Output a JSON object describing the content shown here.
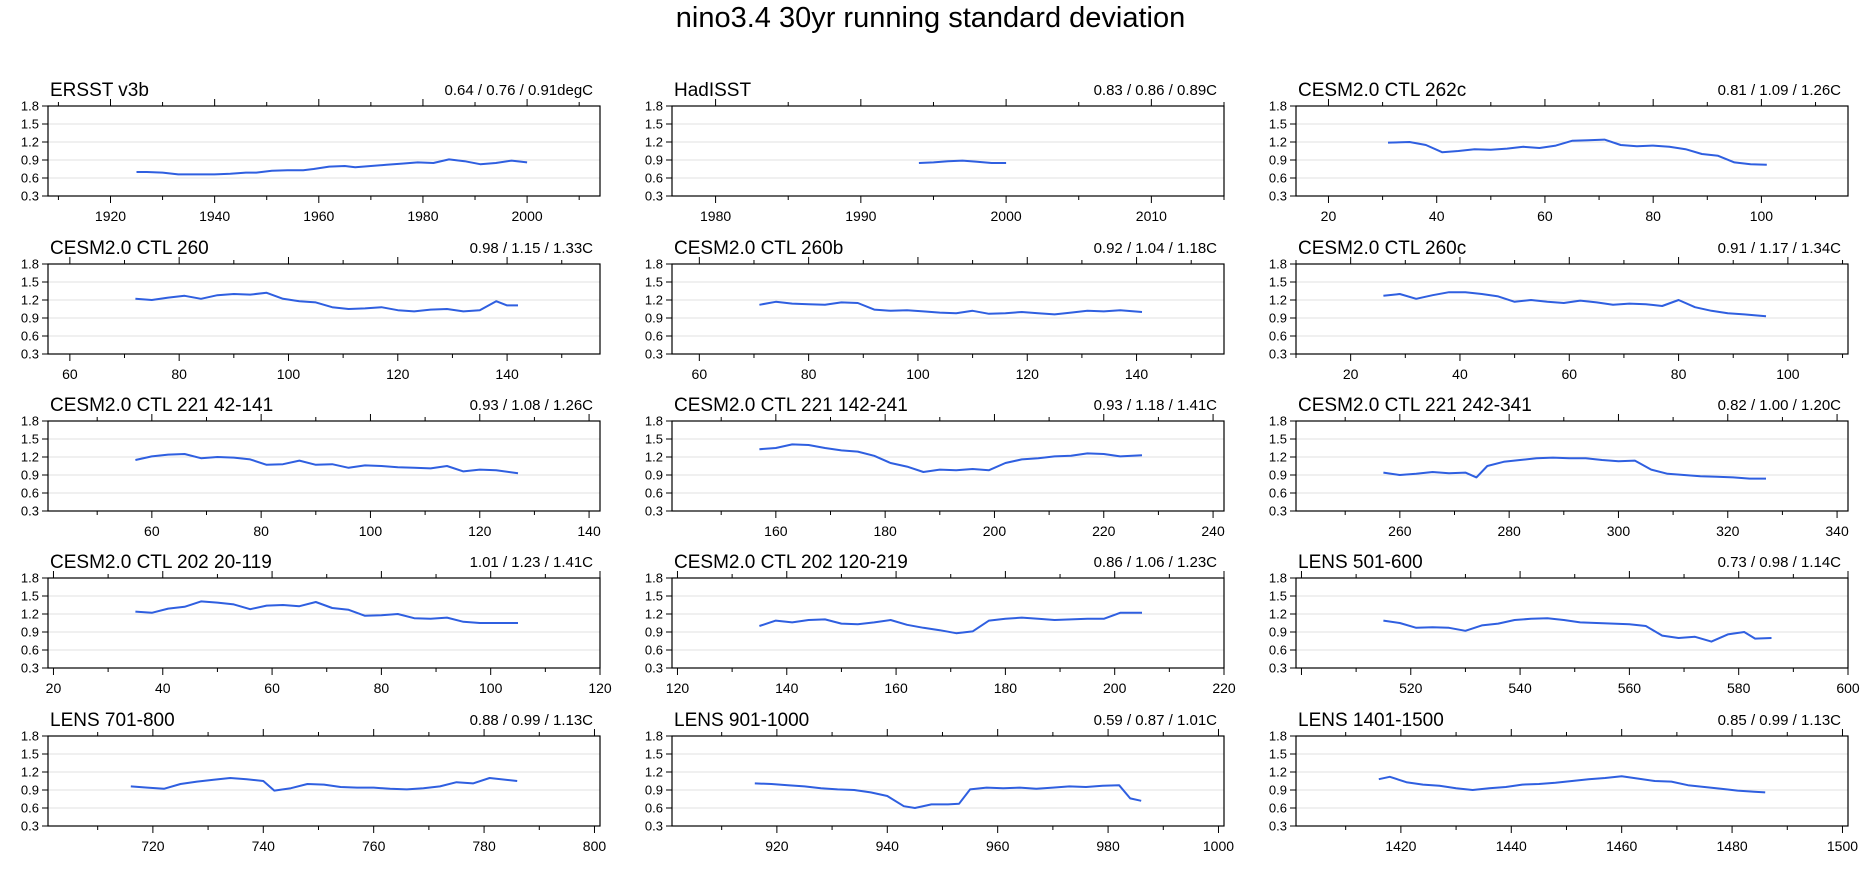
{
  "title": "nino3.4 30yr running standard deviation",
  "colors": {
    "series": "#2f5fe0",
    "grid": "#d9d9d9",
    "axis": "#000000"
  },
  "chart_data": [
    {
      "type": "line",
      "title": "ERSST v3b",
      "stats": "0.64 / 0.76 / 0.91degC",
      "xlim": [
        1908,
        2014
      ],
      "xticks": [
        1920,
        1940,
        1960,
        1980,
        2000
      ],
      "ylim": [
        0.3,
        1.8
      ],
      "yticks": [
        "0.3",
        "0.6",
        "0.9",
        "1.2",
        "1.5",
        "1.8"
      ],
      "x": [
        1925,
        1927,
        1930,
        1933,
        1936,
        1940,
        1943,
        1946,
        1948,
        1951,
        1954,
        1957,
        1959,
        1962,
        1965,
        1967,
        1970,
        1973,
        1976,
        1979,
        1982,
        1985,
        1988,
        1991,
        1994,
        1997,
        2000
      ],
      "y": [
        0.7,
        0.7,
        0.69,
        0.66,
        0.66,
        0.66,
        0.67,
        0.69,
        0.69,
        0.72,
        0.73,
        0.73,
        0.75,
        0.79,
        0.8,
        0.78,
        0.8,
        0.82,
        0.84,
        0.86,
        0.85,
        0.91,
        0.88,
        0.83,
        0.85,
        0.89,
        0.86
      ]
    },
    {
      "type": "line",
      "title": "HadISST",
      "stats": "0.83 / 0.86 / 0.89C",
      "xlim": [
        1977,
        2015
      ],
      "xticks": [
        1980,
        1990,
        2000,
        2010
      ],
      "ylim": [
        0.3,
        1.8
      ],
      "yticks": [
        "0.3",
        "0.6",
        "0.9",
        "1.2",
        "1.5",
        "1.8"
      ],
      "x": [
        1994,
        1995,
        1996,
        1997,
        1998,
        1999,
        2000
      ],
      "y": [
        0.85,
        0.86,
        0.88,
        0.89,
        0.87,
        0.85,
        0.85
      ]
    },
    {
      "type": "line",
      "title": "CESM2.0 CTL 262c",
      "stats": "0.81 / 1.09 / 1.26C",
      "xlim": [
        14,
        116
      ],
      "xticks": [
        20,
        40,
        60,
        80,
        100
      ],
      "ylim": [
        0.3,
        1.8
      ],
      "yticks": [
        "0.3",
        "0.6",
        "0.9",
        "1.2",
        "1.5",
        "1.8"
      ],
      "x": [
        31,
        35,
        38,
        41,
        44,
        47,
        50,
        53,
        56,
        59,
        62,
        65,
        68,
        71,
        74,
        77,
        80,
        83,
        86,
        89,
        92,
        95,
        98,
        101
      ],
      "y": [
        1.19,
        1.2,
        1.15,
        1.03,
        1.05,
        1.08,
        1.07,
        1.09,
        1.12,
        1.1,
        1.14,
        1.22,
        1.23,
        1.24,
        1.15,
        1.13,
        1.14,
        1.12,
        1.08,
        1.0,
        0.97,
        0.86,
        0.83,
        0.82
      ]
    },
    {
      "type": "line",
      "title": "CESM2.0 CTL 260",
      "stats": "0.98 / 1.15 / 1.33C",
      "xlim": [
        56,
        157
      ],
      "xticks": [
        60,
        80,
        100,
        120,
        140
      ],
      "ylim": [
        0.3,
        1.8
      ],
      "yticks": [
        "0.3",
        "0.6",
        "0.9",
        "1.2",
        "1.5",
        "1.8"
      ],
      "x": [
        72,
        75,
        78,
        81,
        84,
        87,
        90,
        93,
        96,
        99,
        102,
        105,
        108,
        111,
        114,
        117,
        120,
        123,
        126,
        129,
        132,
        135,
        138,
        140,
        142
      ],
      "y": [
        1.22,
        1.2,
        1.24,
        1.27,
        1.22,
        1.28,
        1.3,
        1.29,
        1.32,
        1.22,
        1.18,
        1.16,
        1.08,
        1.05,
        1.06,
        1.08,
        1.03,
        1.01,
        1.04,
        1.05,
        1.01,
        1.03,
        1.18,
        1.11,
        1.11
      ]
    },
    {
      "type": "line",
      "title": "CESM2.0 CTL 260b",
      "stats": "0.92 / 1.04 / 1.18C",
      "xlim": [
        55,
        156
      ],
      "xticks": [
        60,
        80,
        100,
        120,
        140
      ],
      "ylim": [
        0.3,
        1.8
      ],
      "yticks": [
        "0.3",
        "0.6",
        "0.9",
        "1.2",
        "1.5",
        "1.8"
      ],
      "x": [
        71,
        74,
        77,
        80,
        83,
        86,
        89,
        92,
        95,
        98,
        101,
        104,
        107,
        110,
        113,
        116,
        119,
        122,
        125,
        128,
        131,
        134,
        137,
        141
      ],
      "y": [
        1.12,
        1.17,
        1.14,
        1.13,
        1.12,
        1.16,
        1.15,
        1.04,
        1.02,
        1.03,
        1.01,
        0.99,
        0.98,
        1.02,
        0.97,
        0.98,
        1.0,
        0.98,
        0.96,
        0.99,
        1.02,
        1.01,
        1.03,
        1.0
      ]
    },
    {
      "type": "line",
      "title": "CESM2.0 CTL 260c",
      "stats": "0.91 / 1.17 / 1.34C",
      "xlim": [
        10,
        111
      ],
      "xticks": [
        20,
        40,
        60,
        80,
        100
      ],
      "ylim": [
        0.3,
        1.8
      ],
      "yticks": [
        "0.3",
        "0.6",
        "0.9",
        "1.2",
        "1.5",
        "1.8"
      ],
      "x": [
        26,
        29,
        32,
        35,
        38,
        41,
        44,
        47,
        50,
        53,
        56,
        59,
        62,
        65,
        68,
        71,
        74,
        77,
        80,
        83,
        86,
        89,
        92,
        96
      ],
      "y": [
        1.27,
        1.3,
        1.22,
        1.28,
        1.33,
        1.33,
        1.3,
        1.26,
        1.17,
        1.2,
        1.17,
        1.15,
        1.19,
        1.16,
        1.12,
        1.14,
        1.13,
        1.1,
        1.2,
        1.08,
        1.02,
        0.98,
        0.96,
        0.93
      ]
    },
    {
      "type": "line",
      "title": "CESM2.0 CTL 221 42-141",
      "stats": "0.93 / 1.08 / 1.26C",
      "xlim": [
        41,
        142
      ],
      "xticks": [
        60,
        80,
        100,
        120,
        140
      ],
      "ylim": [
        0.3,
        1.8
      ],
      "yticks": [
        "0.3",
        "0.6",
        "0.9",
        "1.2",
        "1.5",
        "1.8"
      ],
      "x": [
        57,
        60,
        63,
        66,
        69,
        72,
        75,
        78,
        81,
        84,
        87,
        90,
        93,
        96,
        99,
        102,
        105,
        108,
        111,
        114,
        117,
        120,
        123,
        127
      ],
      "y": [
        1.15,
        1.21,
        1.24,
        1.25,
        1.18,
        1.2,
        1.19,
        1.16,
        1.07,
        1.08,
        1.14,
        1.07,
        1.08,
        1.02,
        1.06,
        1.05,
        1.03,
        1.02,
        1.01,
        1.05,
        0.96,
        0.99,
        0.98,
        0.93
      ]
    },
    {
      "type": "line",
      "title": "CESM2.0 CTL 221 142-241",
      "stats": "0.93 / 1.18 / 1.41C",
      "xlim": [
        141,
        242
      ],
      "xticks": [
        160,
        180,
        200,
        220,
        240
      ],
      "ylim": [
        0.3,
        1.8
      ],
      "yticks": [
        "0.3",
        "0.6",
        "0.9",
        "1.2",
        "1.5",
        "1.8"
      ],
      "x": [
        157,
        160,
        163,
        166,
        169,
        172,
        175,
        178,
        181,
        184,
        187,
        190,
        193,
        196,
        199,
        202,
        205,
        208,
        211,
        214,
        217,
        220,
        223,
        227
      ],
      "y": [
        1.33,
        1.35,
        1.41,
        1.4,
        1.35,
        1.31,
        1.29,
        1.22,
        1.1,
        1.04,
        0.95,
        0.99,
        0.98,
        1.0,
        0.98,
        1.1,
        1.16,
        1.18,
        1.21,
        1.22,
        1.26,
        1.25,
        1.21,
        1.23
      ]
    },
    {
      "type": "line",
      "title": "CESM2.0 CTL 221 242-341",
      "stats": "0.82 / 1.00 / 1.20C",
      "xlim": [
        241,
        342
      ],
      "xticks": [
        260,
        280,
        300,
        320,
        340
      ],
      "ylim": [
        0.3,
        1.8
      ],
      "yticks": [
        "0.3",
        "0.6",
        "0.9",
        "1.2",
        "1.5",
        "1.8"
      ],
      "x": [
        257,
        260,
        263,
        266,
        269,
        272,
        274,
        276,
        279,
        282,
        285,
        288,
        291,
        294,
        297,
        300,
        303,
        306,
        309,
        312,
        315,
        318,
        321,
        324,
        327
      ],
      "y": [
        0.94,
        0.9,
        0.92,
        0.95,
        0.93,
        0.94,
        0.86,
        1.05,
        1.12,
        1.15,
        1.18,
        1.19,
        1.18,
        1.18,
        1.15,
        1.13,
        1.14,
        0.99,
        0.92,
        0.9,
        0.88,
        0.87,
        0.86,
        0.84,
        0.84
      ]
    },
    {
      "type": "line",
      "title": "CESM2.0 CTL 202 20-119",
      "stats": "1.01 / 1.23 / 1.41C",
      "xlim": [
        19,
        120
      ],
      "xticks": [
        20,
        40,
        60,
        80,
        100,
        120
      ],
      "ylim": [
        0.3,
        1.8
      ],
      "yticks": [
        "0.3",
        "0.6",
        "0.9",
        "1.2",
        "1.5",
        "1.8"
      ],
      "x": [
        35,
        38,
        41,
        44,
        47,
        50,
        53,
        56,
        59,
        62,
        65,
        68,
        71,
        74,
        77,
        80,
        83,
        86,
        89,
        92,
        95,
        98,
        101,
        105
      ],
      "y": [
        1.24,
        1.22,
        1.29,
        1.32,
        1.41,
        1.39,
        1.36,
        1.28,
        1.34,
        1.35,
        1.33,
        1.4,
        1.3,
        1.27,
        1.17,
        1.18,
        1.2,
        1.13,
        1.12,
        1.14,
        1.07,
        1.05,
        1.05,
        1.05
      ]
    },
    {
      "type": "line",
      "title": "CESM2.0 CTL 202 120-219",
      "stats": "0.86 / 1.06 / 1.23C",
      "xlim": [
        119,
        220
      ],
      "xticks": [
        120,
        140,
        160,
        180,
        200,
        220
      ],
      "ylim": [
        0.3,
        1.8
      ],
      "yticks": [
        "0.3",
        "0.6",
        "0.9",
        "1.2",
        "1.5",
        "1.8"
      ],
      "x": [
        135,
        138,
        141,
        144,
        147,
        150,
        153,
        156,
        159,
        162,
        165,
        168,
        171,
        174,
        177,
        180,
        183,
        186,
        189,
        192,
        195,
        198,
        201,
        205
      ],
      "y": [
        1.0,
        1.09,
        1.06,
        1.1,
        1.11,
        1.04,
        1.03,
        1.06,
        1.1,
        1.02,
        0.97,
        0.93,
        0.88,
        0.91,
        1.09,
        1.12,
        1.14,
        1.12,
        1.1,
        1.11,
        1.12,
        1.12,
        1.22,
        1.22
      ]
    },
    {
      "type": "line",
      "title": "LENS 501-600",
      "stats": "0.73 / 0.98 / 1.14C",
      "xlim": [
        499,
        600
      ],
      "xticks": [
        520,
        540,
        560,
        580,
        600
      ],
      "ylim": [
        0.3,
        1.8
      ],
      "yticks": [
        "0.3",
        "0.6",
        "0.9",
        "1.2",
        "1.5",
        "1.8"
      ],
      "x": [
        515,
        518,
        521,
        524,
        527,
        530,
        533,
        536,
        539,
        542,
        545,
        548,
        551,
        554,
        557,
        560,
        563,
        566,
        569,
        572,
        575,
        578,
        581,
        583,
        586
      ],
      "y": [
        1.09,
        1.05,
        0.97,
        0.98,
        0.97,
        0.92,
        1.01,
        1.04,
        1.1,
        1.12,
        1.13,
        1.1,
        1.06,
        1.05,
        1.04,
        1.03,
        1.0,
        0.84,
        0.8,
        0.82,
        0.74,
        0.86,
        0.9,
        0.79,
        0.8
      ]
    },
    {
      "type": "line",
      "title": "LENS 701-800",
      "stats": "0.88 / 0.99 / 1.13C",
      "xlim": [
        701,
        801
      ],
      "xticks": [
        720,
        740,
        760,
        780,
        800
      ],
      "ylim": [
        0.3,
        1.8
      ],
      "yticks": [
        "0.3",
        "0.6",
        "0.9",
        "1.2",
        "1.5",
        "1.8"
      ],
      "x": [
        716,
        719,
        722,
        725,
        728,
        731,
        734,
        737,
        740,
        742,
        745,
        748,
        751,
        754,
        757,
        760,
        763,
        766,
        769,
        772,
        775,
        778,
        781,
        786
      ],
      "y": [
        0.96,
        0.94,
        0.92,
        1.0,
        1.04,
        1.07,
        1.1,
        1.08,
        1.05,
        0.89,
        0.93,
        1.0,
        0.99,
        0.95,
        0.94,
        0.94,
        0.92,
        0.91,
        0.93,
        0.96,
        1.03,
        1.01,
        1.1,
        1.05
      ]
    },
    {
      "type": "line",
      "title": "LENS 901-1000",
      "stats": "0.59 / 0.87 / 1.01C",
      "xlim": [
        901,
        1001
      ],
      "xticks": [
        920,
        940,
        960,
        980,
        1000
      ],
      "ylim": [
        0.3,
        1.8
      ],
      "yticks": [
        "0.3",
        "0.6",
        "0.9",
        "1.2",
        "1.5",
        "1.8"
      ],
      "x": [
        916,
        919,
        922,
        925,
        928,
        931,
        934,
        937,
        940,
        943,
        945,
        948,
        951,
        953,
        955,
        958,
        961,
        964,
        967,
        970,
        973,
        976,
        979,
        982,
        984,
        986
      ],
      "y": [
        1.01,
        1.0,
        0.98,
        0.96,
        0.93,
        0.91,
        0.9,
        0.86,
        0.8,
        0.63,
        0.6,
        0.66,
        0.66,
        0.67,
        0.91,
        0.94,
        0.93,
        0.94,
        0.92,
        0.94,
        0.96,
        0.95,
        0.97,
        0.98,
        0.76,
        0.72
      ]
    },
    {
      "type": "line",
      "title": "LENS 1401-1500",
      "stats": "0.85 / 0.99 / 1.13C",
      "xlim": [
        1401,
        1501
      ],
      "xticks": [
        1420,
        1440,
        1460,
        1480,
        1500
      ],
      "ylim": [
        0.3,
        1.8
      ],
      "yticks": [
        "0.3",
        "0.6",
        "0.9",
        "1.2",
        "1.5",
        "1.8"
      ],
      "x": [
        1416,
        1418,
        1421,
        1424,
        1427,
        1430,
        1433,
        1436,
        1439,
        1442,
        1445,
        1448,
        1451,
        1454,
        1457,
        1460,
        1463,
        1466,
        1469,
        1472,
        1475,
        1478,
        1481,
        1484,
        1486
      ],
      "y": [
        1.08,
        1.12,
        1.03,
        0.99,
        0.97,
        0.93,
        0.9,
        0.93,
        0.95,
        0.99,
        1.0,
        1.02,
        1.05,
        1.08,
        1.1,
        1.13,
        1.09,
        1.05,
        1.04,
        0.98,
        0.95,
        0.92,
        0.89,
        0.87,
        0.86
      ]
    }
  ]
}
